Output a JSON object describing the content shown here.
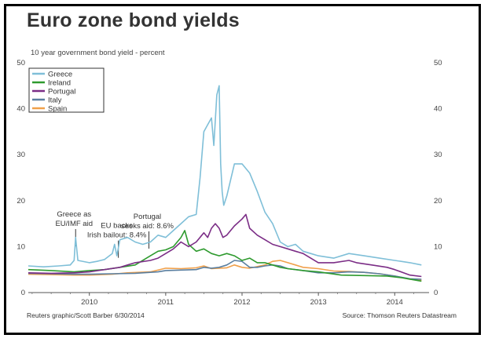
{
  "title": "Euro zone bond yields",
  "subtitle": "10 year government bond yield - percent",
  "footer": {
    "credit": "Reuters graphic/Scott Barber 6/30/2014",
    "source": "Source: Thomson Reuters Datastream"
  },
  "colors": {
    "Greece": "#7fbfd8",
    "Ireland": "#2e9a2e",
    "Portugal": "#7b2d86",
    "Italy": "#5a7fa0",
    "Spain": "#f0a04b"
  },
  "chart_data": {
    "type": "line",
    "title": "Euro zone bond yields",
    "ylabel": "10 year government bond yield - percent",
    "xlabel": "",
    "xlim": [
      2009.2,
      2014.45
    ],
    "ylim": [
      0,
      50
    ],
    "yticks": [
      0,
      10,
      20,
      30,
      40,
      50
    ],
    "xticks": [
      2010,
      2011,
      2012,
      2013,
      2014
    ],
    "grid": false,
    "legend": "top-left",
    "series": [
      {
        "name": "Greece",
        "points": [
          [
            2009.2,
            5.8
          ],
          [
            2009.4,
            5.6
          ],
          [
            2009.6,
            5.8
          ],
          [
            2009.75,
            6.0
          ],
          [
            2009.8,
            7.0
          ],
          [
            2009.82,
            12.0
          ],
          [
            2009.85,
            7.0
          ],
          [
            2010.0,
            6.5
          ],
          [
            2010.1,
            6.8
          ],
          [
            2010.2,
            7.2
          ],
          [
            2010.3,
            8.5
          ],
          [
            2010.33,
            10.5
          ],
          [
            2010.36,
            8.0
          ],
          [
            2010.4,
            11.5
          ],
          [
            2010.5,
            12.0
          ],
          [
            2010.6,
            11.0
          ],
          [
            2010.7,
            10.5
          ],
          [
            2010.8,
            11.0
          ],
          [
            2010.9,
            12.5
          ],
          [
            2011.0,
            12.0
          ],
          [
            2011.1,
            13.5
          ],
          [
            2011.2,
            15.0
          ],
          [
            2011.3,
            16.5
          ],
          [
            2011.4,
            17.0
          ],
          [
            2011.45,
            25.0
          ],
          [
            2011.5,
            35.0
          ],
          [
            2011.6,
            38.0
          ],
          [
            2011.63,
            32.0
          ],
          [
            2011.67,
            43.0
          ],
          [
            2011.7,
            45.0
          ],
          [
            2011.72,
            28.0
          ],
          [
            2011.74,
            22.0
          ],
          [
            2011.76,
            19.0
          ],
          [
            2011.8,
            21.0
          ],
          [
            2011.9,
            28.0
          ],
          [
            2012.0,
            28.0
          ],
          [
            2012.1,
            26.0
          ],
          [
            2012.2,
            22.0
          ],
          [
            2012.3,
            17.5
          ],
          [
            2012.4,
            15.0
          ],
          [
            2012.5,
            11.0
          ],
          [
            2012.6,
            10.0
          ],
          [
            2012.7,
            10.5
          ],
          [
            2012.8,
            9.0
          ],
          [
            2012.9,
            8.5
          ],
          [
            2013.0,
            8.0
          ],
          [
            2013.2,
            7.5
          ],
          [
            2013.4,
            8.5
          ],
          [
            2013.6,
            8.0
          ],
          [
            2013.8,
            7.5
          ],
          [
            2014.0,
            7.0
          ],
          [
            2014.2,
            6.5
          ],
          [
            2014.35,
            6.0
          ]
        ]
      },
      {
        "name": "Ireland",
        "points": [
          [
            2009.2,
            5.0
          ],
          [
            2009.5,
            4.8
          ],
          [
            2009.8,
            4.5
          ],
          [
            2010.0,
            4.8
          ],
          [
            2010.2,
            5.0
          ],
          [
            2010.4,
            5.5
          ],
          [
            2010.6,
            6.0
          ],
          [
            2010.8,
            8.0
          ],
          [
            2010.9,
            9.0
          ],
          [
            2011.0,
            9.3
          ],
          [
            2011.1,
            10.0
          ],
          [
            2011.2,
            12.0
          ],
          [
            2011.25,
            13.5
          ],
          [
            2011.3,
            10.5
          ],
          [
            2011.4,
            9.0
          ],
          [
            2011.5,
            9.5
          ],
          [
            2011.6,
            8.5
          ],
          [
            2011.7,
            8.0
          ],
          [
            2011.8,
            8.5
          ],
          [
            2011.9,
            8.0
          ],
          [
            2012.0,
            7.0
          ],
          [
            2012.1,
            7.5
          ],
          [
            2012.2,
            6.5
          ],
          [
            2012.3,
            6.5
          ],
          [
            2012.4,
            6.0
          ],
          [
            2012.5,
            5.5
          ],
          [
            2012.6,
            5.2
          ],
          [
            2012.8,
            4.8
          ],
          [
            2013.0,
            4.5
          ],
          [
            2013.3,
            3.8
          ],
          [
            2013.6,
            3.7
          ],
          [
            2013.9,
            3.6
          ],
          [
            2014.1,
            3.2
          ],
          [
            2014.35,
            2.5
          ]
        ]
      },
      {
        "name": "Portugal",
        "points": [
          [
            2009.2,
            4.3
          ],
          [
            2009.5,
            4.2
          ],
          [
            2009.8,
            4.3
          ],
          [
            2010.0,
            4.5
          ],
          [
            2010.2,
            5.0
          ],
          [
            2010.4,
            5.5
          ],
          [
            2010.5,
            6.0
          ],
          [
            2010.6,
            6.5
          ],
          [
            2010.8,
            7.0
          ],
          [
            2010.9,
            7.5
          ],
          [
            2011.0,
            8.5
          ],
          [
            2011.1,
            9.5
          ],
          [
            2011.2,
            11.0
          ],
          [
            2011.3,
            10.0
          ],
          [
            2011.4,
            11.0
          ],
          [
            2011.5,
            13.0
          ],
          [
            2011.55,
            12.0
          ],
          [
            2011.6,
            14.0
          ],
          [
            2011.65,
            15.0
          ],
          [
            2011.7,
            14.0
          ],
          [
            2011.75,
            12.0
          ],
          [
            2011.8,
            12.5
          ],
          [
            2011.9,
            14.5
          ],
          [
            2012.0,
            16.0
          ],
          [
            2012.05,
            17.0
          ],
          [
            2012.1,
            14.0
          ],
          [
            2012.2,
            12.5
          ],
          [
            2012.3,
            11.5
          ],
          [
            2012.4,
            10.5
          ],
          [
            2012.5,
            10.0
          ],
          [
            2012.6,
            9.5
          ],
          [
            2012.7,
            9.0
          ],
          [
            2012.8,
            8.5
          ],
          [
            2012.9,
            7.5
          ],
          [
            2013.0,
            6.5
          ],
          [
            2013.2,
            6.5
          ],
          [
            2013.4,
            7.0
          ],
          [
            2013.5,
            6.5
          ],
          [
            2013.7,
            6.0
          ],
          [
            2013.9,
            5.5
          ],
          [
            2014.0,
            5.0
          ],
          [
            2014.2,
            3.8
          ],
          [
            2014.35,
            3.5
          ]
        ]
      },
      {
        "name": "Italy",
        "points": [
          [
            2009.2,
            4.2
          ],
          [
            2009.5,
            4.1
          ],
          [
            2009.8,
            4.0
          ],
          [
            2010.0,
            4.0
          ],
          [
            2010.3,
            4.1
          ],
          [
            2010.6,
            4.2
          ],
          [
            2010.9,
            4.5
          ],
          [
            2011.0,
            4.8
          ],
          [
            2011.2,
            4.9
          ],
          [
            2011.4,
            5.0
          ],
          [
            2011.5,
            5.5
          ],
          [
            2011.6,
            5.3
          ],
          [
            2011.7,
            5.5
          ],
          [
            2011.8,
            6.0
          ],
          [
            2011.9,
            7.0
          ],
          [
            2012.0,
            6.8
          ],
          [
            2012.1,
            5.5
          ],
          [
            2012.2,
            5.5
          ],
          [
            2012.3,
            5.8
          ],
          [
            2012.4,
            6.0
          ],
          [
            2012.5,
            5.8
          ],
          [
            2012.6,
            5.2
          ],
          [
            2012.8,
            4.8
          ],
          [
            2013.0,
            4.3
          ],
          [
            2013.2,
            4.3
          ],
          [
            2013.4,
            4.5
          ],
          [
            2013.6,
            4.4
          ],
          [
            2013.8,
            4.1
          ],
          [
            2014.0,
            3.6
          ],
          [
            2014.2,
            3.0
          ],
          [
            2014.35,
            2.9
          ]
        ]
      },
      {
        "name": "Spain",
        "points": [
          [
            2009.2,
            4.0
          ],
          [
            2009.5,
            3.9
          ],
          [
            2009.8,
            3.8
          ],
          [
            2010.0,
            3.8
          ],
          [
            2010.3,
            4.0
          ],
          [
            2010.5,
            4.3
          ],
          [
            2010.8,
            4.5
          ],
          [
            2011.0,
            5.3
          ],
          [
            2011.2,
            5.2
          ],
          [
            2011.4,
            5.4
          ],
          [
            2011.5,
            5.8
          ],
          [
            2011.6,
            5.2
          ],
          [
            2011.8,
            5.4
          ],
          [
            2011.9,
            6.0
          ],
          [
            2012.0,
            5.5
          ],
          [
            2012.1,
            5.3
          ],
          [
            2012.3,
            6.0
          ],
          [
            2012.4,
            6.8
          ],
          [
            2012.5,
            7.0
          ],
          [
            2012.6,
            6.5
          ],
          [
            2012.7,
            6.0
          ],
          [
            2012.8,
            5.5
          ],
          [
            2013.0,
            5.2
          ],
          [
            2013.2,
            4.7
          ],
          [
            2013.4,
            4.6
          ],
          [
            2013.6,
            4.4
          ],
          [
            2013.8,
            4.1
          ],
          [
            2014.0,
            3.6
          ],
          [
            2014.2,
            2.9
          ],
          [
            2014.35,
            2.7
          ]
        ]
      }
    ],
    "annotations": [
      {
        "lines": [
          "Greece as",
          "EU/IMF aid"
        ],
        "x": 2009.82,
        "y": 14.5
      },
      {
        "lines": [
          "EU backs",
          "Irish bailout: 8.4%"
        ],
        "x": 2010.38,
        "y": 12.0
      },
      {
        "lines": [
          "Portugal",
          "seeks aid: 8.6%"
        ],
        "x": 2010.78,
        "y": 14.0
      }
    ]
  }
}
